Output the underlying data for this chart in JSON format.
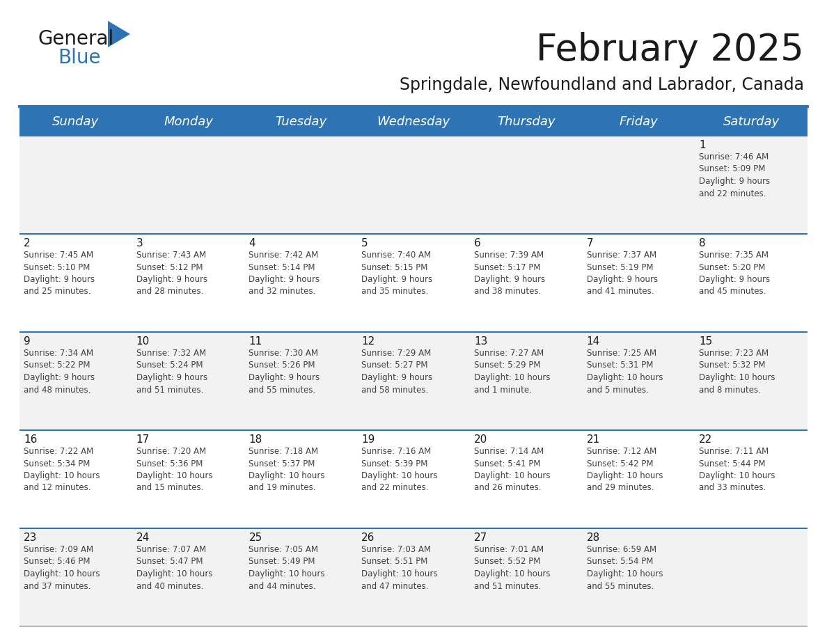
{
  "title": "February 2025",
  "subtitle": "Springdale, Newfoundland and Labrador, Canada",
  "header_bg": "#2E74B5",
  "header_text_color": "#FFFFFF",
  "row_bg_odd": "#F2F2F2",
  "row_bg_even": "#FFFFFF",
  "cell_border_color": "#2E74B5",
  "day_names": [
    "Sunday",
    "Monday",
    "Tuesday",
    "Wednesday",
    "Thursday",
    "Friday",
    "Saturday"
  ],
  "title_fontsize": 38,
  "subtitle_fontsize": 17,
  "header_fontsize": 13,
  "day_num_fontsize": 11,
  "info_fontsize": 8.5,
  "calendar": [
    [
      {
        "day": 0,
        "info": ""
      },
      {
        "day": 0,
        "info": ""
      },
      {
        "day": 0,
        "info": ""
      },
      {
        "day": 0,
        "info": ""
      },
      {
        "day": 0,
        "info": ""
      },
      {
        "day": 0,
        "info": ""
      },
      {
        "day": 1,
        "info": "Sunrise: 7:46 AM\nSunset: 5:09 PM\nDaylight: 9 hours\nand 22 minutes."
      }
    ],
    [
      {
        "day": 2,
        "info": "Sunrise: 7:45 AM\nSunset: 5:10 PM\nDaylight: 9 hours\nand 25 minutes."
      },
      {
        "day": 3,
        "info": "Sunrise: 7:43 AM\nSunset: 5:12 PM\nDaylight: 9 hours\nand 28 minutes."
      },
      {
        "day": 4,
        "info": "Sunrise: 7:42 AM\nSunset: 5:14 PM\nDaylight: 9 hours\nand 32 minutes."
      },
      {
        "day": 5,
        "info": "Sunrise: 7:40 AM\nSunset: 5:15 PM\nDaylight: 9 hours\nand 35 minutes."
      },
      {
        "day": 6,
        "info": "Sunrise: 7:39 AM\nSunset: 5:17 PM\nDaylight: 9 hours\nand 38 minutes."
      },
      {
        "day": 7,
        "info": "Sunrise: 7:37 AM\nSunset: 5:19 PM\nDaylight: 9 hours\nand 41 minutes."
      },
      {
        "day": 8,
        "info": "Sunrise: 7:35 AM\nSunset: 5:20 PM\nDaylight: 9 hours\nand 45 minutes."
      }
    ],
    [
      {
        "day": 9,
        "info": "Sunrise: 7:34 AM\nSunset: 5:22 PM\nDaylight: 9 hours\nand 48 minutes."
      },
      {
        "day": 10,
        "info": "Sunrise: 7:32 AM\nSunset: 5:24 PM\nDaylight: 9 hours\nand 51 minutes."
      },
      {
        "day": 11,
        "info": "Sunrise: 7:30 AM\nSunset: 5:26 PM\nDaylight: 9 hours\nand 55 minutes."
      },
      {
        "day": 12,
        "info": "Sunrise: 7:29 AM\nSunset: 5:27 PM\nDaylight: 9 hours\nand 58 minutes."
      },
      {
        "day": 13,
        "info": "Sunrise: 7:27 AM\nSunset: 5:29 PM\nDaylight: 10 hours\nand 1 minute."
      },
      {
        "day": 14,
        "info": "Sunrise: 7:25 AM\nSunset: 5:31 PM\nDaylight: 10 hours\nand 5 minutes."
      },
      {
        "day": 15,
        "info": "Sunrise: 7:23 AM\nSunset: 5:32 PM\nDaylight: 10 hours\nand 8 minutes."
      }
    ],
    [
      {
        "day": 16,
        "info": "Sunrise: 7:22 AM\nSunset: 5:34 PM\nDaylight: 10 hours\nand 12 minutes."
      },
      {
        "day": 17,
        "info": "Sunrise: 7:20 AM\nSunset: 5:36 PM\nDaylight: 10 hours\nand 15 minutes."
      },
      {
        "day": 18,
        "info": "Sunrise: 7:18 AM\nSunset: 5:37 PM\nDaylight: 10 hours\nand 19 minutes."
      },
      {
        "day": 19,
        "info": "Sunrise: 7:16 AM\nSunset: 5:39 PM\nDaylight: 10 hours\nand 22 minutes."
      },
      {
        "day": 20,
        "info": "Sunrise: 7:14 AM\nSunset: 5:41 PM\nDaylight: 10 hours\nand 26 minutes."
      },
      {
        "day": 21,
        "info": "Sunrise: 7:12 AM\nSunset: 5:42 PM\nDaylight: 10 hours\nand 29 minutes."
      },
      {
        "day": 22,
        "info": "Sunrise: 7:11 AM\nSunset: 5:44 PM\nDaylight: 10 hours\nand 33 minutes."
      }
    ],
    [
      {
        "day": 23,
        "info": "Sunrise: 7:09 AM\nSunset: 5:46 PM\nDaylight: 10 hours\nand 37 minutes."
      },
      {
        "day": 24,
        "info": "Sunrise: 7:07 AM\nSunset: 5:47 PM\nDaylight: 10 hours\nand 40 minutes."
      },
      {
        "day": 25,
        "info": "Sunrise: 7:05 AM\nSunset: 5:49 PM\nDaylight: 10 hours\nand 44 minutes."
      },
      {
        "day": 26,
        "info": "Sunrise: 7:03 AM\nSunset: 5:51 PM\nDaylight: 10 hours\nand 47 minutes."
      },
      {
        "day": 27,
        "info": "Sunrise: 7:01 AM\nSunset: 5:52 PM\nDaylight: 10 hours\nand 51 minutes."
      },
      {
        "day": 28,
        "info": "Sunrise: 6:59 AM\nSunset: 5:54 PM\nDaylight: 10 hours\nand 55 minutes."
      },
      {
        "day": 0,
        "info": ""
      }
    ]
  ],
  "logo_general_color": "#1A1A1A",
  "logo_blue_color": "#2E74B5",
  "logo_triangle_color": "#2E74B5",
  "text_color_dark": "#1A1A1A",
  "day_num_color": "#1A1A1A",
  "info_text_color": "#404040",
  "fig_width": 11.88,
  "fig_height": 9.18,
  "fig_dpi": 100
}
